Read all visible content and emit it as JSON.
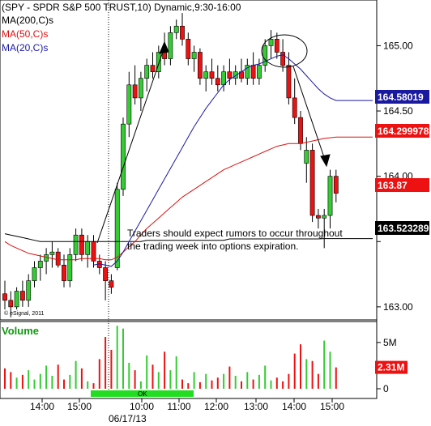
{
  "header": {
    "title": "(SPY - SPDR S&P 500 TRUST,10) Dynamic,9:30-16:00",
    "ma200_label": "MA(200,C)s",
    "ma50_label": "MA(50,C)s",
    "ma20_label": "MA(20,C)s"
  },
  "annotation": {
    "line1": "Traders should expect rumors to occur throughout",
    "line2": "the trading week into options expiration."
  },
  "watermark": "© eSignal, 2011",
  "volume_panel": {
    "title": "Volume",
    "ticks": [
      "5M",
      "0"
    ],
    "current_label": "2.31M",
    "status": "OK"
  },
  "date_label": "06/17/13",
  "colors": {
    "up": "#33cc33",
    "down": "#ee1111",
    "ma200": "#000000",
    "ma50": "#dd1111",
    "ma20": "#1a1aa0",
    "ma20_badge": "#1a1aa0",
    "ma50_badge": "#ee1111",
    "close_badge": "#ee1111",
    "ma200_badge": "#000000",
    "volume_title": "#119911"
  },
  "chart_data": {
    "type": "candlestick",
    "interval": "10 minute",
    "price_axis": {
      "ylim": [
        162.9,
        165.35
      ],
      "ticks": [
        163.0,
        163.5,
        164.0,
        164.5,
        165.0
      ],
      "tick_labels": [
        "163.00",
        "",
        "164.00",
        "164.50",
        "165.00"
      ]
    },
    "time_axis": {
      "labels": [
        "14:00",
        "15:00",
        "10:00",
        "11:00",
        "12:00",
        "13:00",
        "14:00",
        "15:00"
      ]
    },
    "session_break_label": "06/17/13",
    "value_badges": [
      {
        "name": "MA(20,C)s",
        "value": "164.58019"
      },
      {
        "name": "MA(50,C)s",
        "value": "164.299978"
      },
      {
        "name": "Last",
        "value": "163.87"
      },
      {
        "name": "MA(200,C)s",
        "value": "163.523289"
      }
    ],
    "candles": [
      [
        163.1,
        163.2,
        162.98,
        163.05
      ],
      [
        163.05,
        163.12,
        162.92,
        163.0
      ],
      [
        163.0,
        163.15,
        162.98,
        163.12
      ],
      [
        163.12,
        163.2,
        163.0,
        163.05
      ],
      [
        163.05,
        163.25,
        163.0,
        163.2
      ],
      [
        163.2,
        163.35,
        163.15,
        163.3
      ],
      [
        163.3,
        163.4,
        163.2,
        163.35
      ],
      [
        163.35,
        163.45,
        163.25,
        163.4
      ],
      [
        163.4,
        163.5,
        163.3,
        163.42
      ],
      [
        163.42,
        163.45,
        163.3,
        163.32
      ],
      [
        163.32,
        163.4,
        163.15,
        163.2
      ],
      [
        163.2,
        163.45,
        163.15,
        163.4
      ],
      [
        163.4,
        163.6,
        163.35,
        163.55
      ],
      [
        163.55,
        163.6,
        163.35,
        163.4
      ],
      [
        163.4,
        163.55,
        163.3,
        163.5
      ],
      [
        163.5,
        163.55,
        163.3,
        163.35
      ],
      [
        163.35,
        163.4,
        163.25,
        163.3
      ],
      [
        163.3,
        163.35,
        163.05,
        163.2
      ],
      [
        163.2,
        163.25,
        163.1,
        163.15
      ],
      [
        163.3,
        163.95,
        163.28,
        163.9
      ],
      [
        163.9,
        164.45,
        163.85,
        164.4
      ],
      [
        164.4,
        164.8,
        164.3,
        164.7
      ],
      [
        164.7,
        164.85,
        164.55,
        164.6
      ],
      [
        164.6,
        164.8,
        164.5,
        164.75
      ],
      [
        164.75,
        164.9,
        164.65,
        164.85
      ],
      [
        164.85,
        164.95,
        164.75,
        164.8
      ],
      [
        164.8,
        165.0,
        164.75,
        164.95
      ],
      [
        164.95,
        165.1,
        164.85,
        164.9
      ],
      [
        164.9,
        165.15,
        164.85,
        165.1
      ],
      [
        165.1,
        165.2,
        165.05,
        165.15
      ],
      [
        165.15,
        165.25,
        165.0,
        165.05
      ],
      [
        165.05,
        165.1,
        164.85,
        164.9
      ],
      [
        164.9,
        165.0,
        164.8,
        164.95
      ],
      [
        164.95,
        164.98,
        164.7,
        164.75
      ],
      [
        164.75,
        164.85,
        164.65,
        164.8
      ],
      [
        164.8,
        164.9,
        164.7,
        164.75
      ],
      [
        164.75,
        164.85,
        164.65,
        164.7
      ],
      [
        164.7,
        164.85,
        164.65,
        164.8
      ],
      [
        164.8,
        164.9,
        164.7,
        164.75
      ],
      [
        164.75,
        164.85,
        164.7,
        164.8
      ],
      [
        164.8,
        164.9,
        164.72,
        164.75
      ],
      [
        164.75,
        164.9,
        164.7,
        164.85
      ],
      [
        164.85,
        164.95,
        164.7,
        164.75
      ],
      [
        164.75,
        164.9,
        164.7,
        164.85
      ],
      [
        164.85,
        165.05,
        164.8,
        165.0
      ],
      [
        165.0,
        165.12,
        164.9,
        165.05
      ],
      [
        165.05,
        165.1,
        164.9,
        164.95
      ],
      [
        164.95,
        165.05,
        164.8,
        164.85
      ],
      [
        164.85,
        164.95,
        164.55,
        164.6
      ],
      [
        164.6,
        164.75,
        164.4,
        164.45
      ],
      [
        164.45,
        164.5,
        164.2,
        164.25
      ],
      [
        164.1,
        164.3,
        163.95,
        164.2
      ],
      [
        164.2,
        164.25,
        163.65,
        163.7
      ],
      [
        163.7,
        163.75,
        163.6,
        163.68
      ],
      [
        163.68,
        163.75,
        163.45,
        163.7
      ],
      [
        163.7,
        164.05,
        163.6,
        164.0
      ],
      [
        164.0,
        164.05,
        163.8,
        163.87
      ]
    ],
    "volume": [
      2.2,
      1.8,
      1.2,
      1.5,
      2.0,
      1.0,
      1.6,
      2.5,
      1.4,
      2.6,
      1.0,
      1.5,
      3.0,
      2.2,
      0.8,
      0.6,
      3.2,
      5.6,
      4.2,
      6.8,
      6.5,
      2.8,
      2.0,
      0.8,
      3.6,
      2.6,
      1.8,
      4.0,
      2.0,
      3.5,
      1.0,
      0.6,
      1.8,
      0.7,
      1.6,
      0.9,
      1.2,
      1.6,
      2.4,
      1.4,
      0.8,
      1.8,
      1.0,
      1.5,
      2.5,
      0.9,
      1.2,
      0.8,
      1.6,
      3.8,
      4.8,
      3.2,
      3.0,
      1.6,
      5.2,
      4.0,
      2.31
    ],
    "ma20": [
      null,
      null,
      null,
      null,
      null,
      null,
      null,
      null,
      null,
      null,
      null,
      null,
      null,
      null,
      null,
      163.32,
      163.33,
      163.32,
      163.31,
      163.35,
      163.42,
      163.5,
      163.58,
      163.66,
      163.74,
      163.82,
      163.9,
      163.98,
      164.06,
      164.14,
      164.22,
      164.3,
      164.38,
      164.45,
      164.52,
      164.58,
      164.64,
      164.7,
      164.74,
      164.77,
      164.8,
      164.83,
      164.85,
      164.86,
      164.88,
      164.9,
      164.92,
      164.93,
      164.9,
      164.86,
      164.82,
      164.77,
      164.72,
      164.67,
      164.63,
      164.6,
      164.58
    ],
    "ma50": [
      163.5,
      163.47,
      163.45,
      163.43,
      163.41,
      163.4,
      163.39,
      163.38,
      163.37,
      163.36,
      163.36,
      163.36,
      163.36,
      163.37,
      163.37,
      163.37,
      163.37,
      163.36,
      163.36,
      163.38,
      163.42,
      163.46,
      163.5,
      163.55,
      163.6,
      163.64,
      163.68,
      163.72,
      163.76,
      163.8,
      163.84,
      163.87,
      163.9,
      163.93,
      163.96,
      163.99,
      164.02,
      164.05,
      164.07,
      164.09,
      164.11,
      164.13,
      164.15,
      164.17,
      164.19,
      164.21,
      164.23,
      164.24,
      164.25,
      164.25,
      164.25,
      164.26,
      164.27,
      164.28,
      164.29,
      164.295,
      164.3
    ],
    "ma200": [
      163.56,
      163.55,
      163.54,
      163.53,
      163.52,
      163.51,
      163.5,
      163.5,
      163.5,
      163.5,
      163.5,
      163.5,
      163.5,
      163.5,
      163.5,
      163.5,
      163.5,
      163.5,
      163.5,
      163.5,
      163.5,
      163.5,
      163.5,
      163.5,
      163.51,
      163.51,
      163.51,
      163.51,
      163.51,
      163.51,
      163.51,
      163.51,
      163.51,
      163.51,
      163.51,
      163.51,
      163.51,
      163.51,
      163.52,
      163.52,
      163.52,
      163.52,
      163.52,
      163.52,
      163.52,
      163.52,
      163.52,
      163.52,
      163.52,
      163.52,
      163.52,
      163.52,
      163.52,
      163.52,
      163.523,
      163.523,
      163.523
    ]
  }
}
